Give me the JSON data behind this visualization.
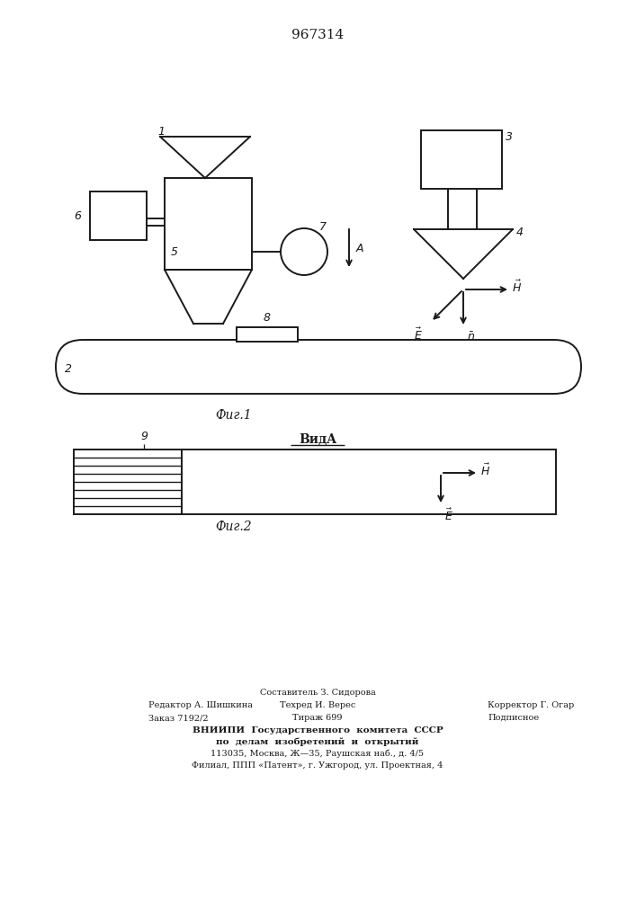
{
  "patent_number": "967314",
  "fig1_label": "Фиг.1",
  "fig2_label": "Фиг.2",
  "vid_label": "ВидA",
  "background_color": "#ffffff",
  "line_color": "#1a1a1a",
  "lw": 1.4
}
